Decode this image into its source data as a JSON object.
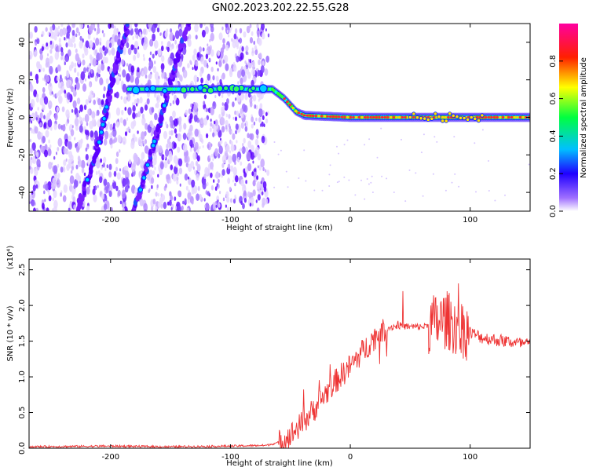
{
  "title": "GN02.2023.202.22.55.G28",
  "chart_data": [
    {
      "type": "heatmap",
      "xlabel": "Height of straight line (km)",
      "ylabel": "Frequency (Hz)",
      "xlim": [
        -268,
        150
      ],
      "ylim": [
        -50,
        50
      ],
      "xticks": [
        -200,
        -100,
        0,
        100
      ],
      "yticks": [
        -40,
        -20,
        0,
        20,
        40
      ],
      "colorbar": {
        "label": "Normalized spectral amplitude",
        "range": [
          0,
          1
        ],
        "ticks": [
          "0.0",
          "0.2",
          "0.4",
          "0.6",
          "0.8"
        ],
        "colormap": [
          "#ffffff",
          "#7a00ff",
          "#0000ff",
          "#00ffff",
          "#00ff00",
          "#ffff00",
          "#ff0000",
          "#ff00ff"
        ]
      },
      "features": [
        {
          "kind": "main_line",
          "points": [
            [
              -185,
              15
            ],
            [
              -75,
              15
            ],
            [
              -65,
              15
            ],
            [
              -55,
              10
            ],
            [
              -45,
              3
            ],
            [
              -38,
              1
            ],
            [
              0,
              0
            ],
            [
              150,
              0
            ]
          ]
        },
        {
          "kind": "diagonal_streak",
          "points": [
            [
              -228,
              -50
            ],
            [
              -210,
              -15
            ],
            [
              -198,
              22
            ],
            [
              -185,
              50
            ]
          ]
        },
        {
          "kind": "diagonal_streak",
          "points": [
            [
              -180,
              -50
            ],
            [
              -160,
              -5
            ],
            [
              -145,
              30
            ],
            [
              -135,
              50
            ]
          ]
        }
      ],
      "noise_region_x": [
        -268,
        -68
      ]
    },
    {
      "type": "line",
      "xlabel": "Height of straight line (km)",
      "ylabel": "SNR (10 * v/v)",
      "yscale_note": "(x10⁴)",
      "xlim": [
        -268,
        150
      ],
      "ylim": [
        0,
        2.65
      ],
      "xticks": [
        -200,
        -100,
        0,
        100
      ],
      "yticks": [
        "0.0",
        "0.5",
        "1.0",
        "1.5",
        "2.0",
        "2.5"
      ],
      "series": [
        {
          "color": "#ee3333",
          "x": [
            -268,
            -200,
            -150,
            -100,
            -70,
            -60,
            -50,
            -40,
            -30,
            -20,
            -10,
            0,
            10,
            20,
            30,
            40,
            50,
            60,
            70,
            80,
            90,
            100,
            110,
            120,
            130,
            140,
            150
          ],
          "y": [
            0.02,
            0.03,
            0.02,
            0.03,
            0.04,
            0.08,
            0.18,
            0.35,
            0.55,
            0.78,
            0.98,
            1.15,
            1.35,
            1.55,
            1.68,
            1.72,
            1.7,
            1.7,
            1.75,
            1.8,
            1.7,
            1.62,
            1.55,
            1.52,
            1.5,
            1.47,
            1.45
          ]
        }
      ]
    }
  ]
}
